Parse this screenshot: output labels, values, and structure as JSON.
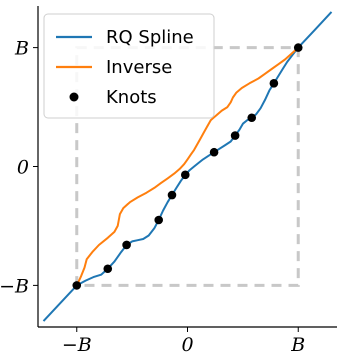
{
  "chart_data": {
    "type": "line",
    "title": "",
    "xlabel": "",
    "ylabel": "",
    "xlim": [
      -1.35,
      1.35
    ],
    "ylim": [
      -1.35,
      1.35
    ],
    "xticks": [
      {
        "value": -1,
        "label": "−B"
      },
      {
        "value": 0,
        "label": "0"
      },
      {
        "value": 1,
        "label": "B"
      }
    ],
    "yticks": [
      {
        "value": -1,
        "label": "−B"
      },
      {
        "value": 0,
        "label": "0"
      },
      {
        "value": 1,
        "label": "B"
      }
    ],
    "grid": false,
    "legend_position": "top-left",
    "bounding_box": {
      "x": [
        -1,
        1
      ],
      "y": [
        -1,
        1
      ],
      "style": "dashed",
      "color": "#c8c8c8"
    },
    "series": [
      {
        "name": "RQ Spline",
        "color": "#1f77b4",
        "x": [
          -1.3,
          -1.0,
          -0.92,
          -0.85,
          -0.78,
          -0.72,
          -0.66,
          -0.6,
          -0.55,
          -0.5,
          -0.45,
          -0.4,
          -0.35,
          -0.3,
          -0.26,
          -0.22,
          -0.18,
          -0.14,
          -0.1,
          -0.06,
          -0.02,
          0.02,
          0.06,
          0.1,
          0.14,
          0.19,
          0.24,
          0.29,
          0.34,
          0.39,
          0.43,
          0.47,
          0.5,
          0.54,
          0.58,
          0.62,
          0.66,
          0.7,
          0.74,
          0.78,
          0.82,
          0.86,
          0.9,
          0.95,
          1.0,
          1.15,
          1.3
        ],
        "y": [
          -1.3,
          -1.0,
          -0.96,
          -0.93,
          -0.91,
          -0.86,
          -0.8,
          -0.72,
          -0.66,
          -0.63,
          -0.62,
          -0.61,
          -0.58,
          -0.52,
          -0.45,
          -0.37,
          -0.3,
          -0.24,
          -0.18,
          -0.12,
          -0.07,
          -0.03,
          0.0,
          0.03,
          0.06,
          0.09,
          0.12,
          0.15,
          0.18,
          0.21,
          0.26,
          0.31,
          0.36,
          0.39,
          0.41,
          0.44,
          0.49,
          0.56,
          0.64,
          0.7,
          0.76,
          0.82,
          0.88,
          0.94,
          1.0,
          1.15,
          1.3
        ]
      },
      {
        "name": "Inverse",
        "color": "#ff7f0e",
        "x": [
          -1.0,
          -0.96,
          -0.93,
          -0.91,
          -0.86,
          -0.8,
          -0.72,
          -0.66,
          -0.63,
          -0.62,
          -0.61,
          -0.58,
          -0.52,
          -0.45,
          -0.37,
          -0.3,
          -0.24,
          -0.18,
          -0.12,
          -0.07,
          -0.03,
          0.0,
          0.03,
          0.06,
          0.09,
          0.12,
          0.15,
          0.18,
          0.21,
          0.26,
          0.31,
          0.36,
          0.39,
          0.41,
          0.44,
          0.49,
          0.56,
          0.64,
          0.7,
          0.76,
          0.82,
          0.88,
          0.94,
          1.0
        ],
        "y": [
          -1.0,
          -0.92,
          -0.85,
          -0.78,
          -0.72,
          -0.66,
          -0.6,
          -0.55,
          -0.5,
          -0.45,
          -0.4,
          -0.35,
          -0.3,
          -0.26,
          -0.22,
          -0.18,
          -0.14,
          -0.1,
          -0.06,
          -0.02,
          0.02,
          0.06,
          0.1,
          0.14,
          0.19,
          0.24,
          0.29,
          0.34,
          0.39,
          0.43,
          0.47,
          0.5,
          0.54,
          0.58,
          0.62,
          0.66,
          0.7,
          0.74,
          0.78,
          0.82,
          0.86,
          0.9,
          0.95,
          1.0
        ]
      },
      {
        "name": "Knots",
        "color": "#000000",
        "marker": "circle",
        "x": [
          -1.0,
          -0.72,
          -0.55,
          -0.26,
          -0.14,
          -0.02,
          0.24,
          0.43,
          0.58,
          0.78,
          1.0
        ],
        "y": [
          -1.0,
          -0.86,
          -0.66,
          -0.45,
          -0.24,
          -0.07,
          0.12,
          0.26,
          0.41,
          0.7,
          1.0
        ]
      }
    ]
  }
}
